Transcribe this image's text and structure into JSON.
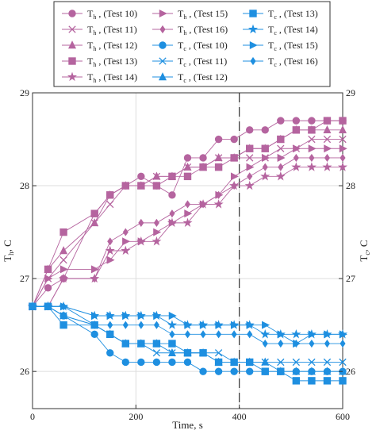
{
  "chart_data": {
    "type": "line",
    "xlabel": "Time, s",
    "ylabel_left": {
      "main": "T",
      "sub": "h",
      "unit": ", C"
    },
    "ylabel_right": {
      "main": "T",
      "sub": "c",
      "unit": ", C"
    },
    "xlim": [
      0,
      600
    ],
    "ylim": [
      25.6,
      29
    ],
    "xticks": [
      0,
      200,
      400,
      600
    ],
    "yticks": [
      26,
      27,
      28,
      29
    ],
    "grid": true,
    "vline_x": 400,
    "legend_placement": "top",
    "colors": {
      "hot": "#b5649f",
      "cold": "#1e8fe0"
    },
    "x": [
      0,
      30,
      60,
      120,
      150,
      180,
      210,
      240,
      270,
      300,
      330,
      360,
      390,
      420,
      450,
      480,
      510,
      540,
      570,
      600
    ],
    "series": [
      {
        "name": "(Test 10)",
        "main": "T",
        "sub": "h",
        "group": "hot",
        "marker": "circle",
        "values": [
          26.7,
          26.9,
          27.0,
          27.7,
          27.9,
          28.0,
          28.1,
          28.0,
          27.9,
          28.3,
          28.3,
          28.5,
          28.5,
          28.6,
          28.6,
          28.7,
          28.7,
          28.7,
          28.7,
          28.7
        ]
      },
      {
        "name": "(Test 11)",
        "main": "T",
        "sub": "h",
        "group": "hot",
        "marker": "x",
        "values": [
          26.7,
          27.0,
          27.2,
          27.6,
          27.8,
          28.0,
          28.0,
          28.1,
          28.1,
          28.2,
          28.2,
          28.3,
          28.3,
          28.3,
          28.3,
          28.4,
          28.4,
          28.5,
          28.5,
          28.5
        ]
      },
      {
        "name": "(Test 12)",
        "main": "T",
        "sub": "h",
        "group": "hot",
        "marker": "triangle",
        "values": [
          26.7,
          27.1,
          27.3,
          27.6,
          27.9,
          28.0,
          28.0,
          28.1,
          28.1,
          28.2,
          28.2,
          28.3,
          28.3,
          28.4,
          28.4,
          28.5,
          28.6,
          28.6,
          28.6,
          28.6
        ]
      },
      {
        "name": "(Test 13)",
        "main": "T",
        "sub": "h",
        "group": "hot",
        "marker": "square",
        "values": [
          26.7,
          27.1,
          27.5,
          27.7,
          27.9,
          28.0,
          28.0,
          28.0,
          28.1,
          28.1,
          28.2,
          28.2,
          28.3,
          28.4,
          28.4,
          28.5,
          28.6,
          28.6,
          28.7,
          28.7
        ]
      },
      {
        "name": "(Test 14)",
        "main": "T",
        "sub": "h",
        "group": "hot",
        "marker": "star",
        "values": [
          26.7,
          26.7,
          27.0,
          27.0,
          27.3,
          27.3,
          27.4,
          27.4,
          27.6,
          27.6,
          27.8,
          27.8,
          28.0,
          28.0,
          28.1,
          28.1,
          28.2,
          28.2,
          28.2,
          28.2
        ]
      },
      {
        "name": "(Test 15)",
        "main": "T",
        "sub": "h",
        "group": "hot",
        "marker": "triangle-right",
        "values": [
          26.7,
          27.0,
          27.1,
          27.1,
          27.2,
          27.4,
          27.4,
          27.5,
          27.6,
          27.7,
          27.8,
          27.9,
          28.1,
          28.2,
          28.3,
          28.3,
          28.4,
          28.4,
          28.4,
          28.4
        ]
      },
      {
        "name": "(Test 16)",
        "main": "T",
        "sub": "h",
        "group": "hot",
        "marker": "diamond",
        "values": [
          26.7,
          26.7,
          27.0,
          27.0,
          27.4,
          27.5,
          27.6,
          27.6,
          27.7,
          27.8,
          27.8,
          27.9,
          28.0,
          28.1,
          28.2,
          28.2,
          28.3,
          28.3,
          28.3,
          28.3
        ]
      },
      {
        "name": "(Test 10)",
        "main": "T",
        "sub": "c",
        "group": "cold",
        "marker": "circle",
        "values": [
          26.7,
          26.7,
          26.6,
          26.4,
          26.2,
          26.1,
          26.1,
          26.1,
          26.1,
          26.1,
          26.0,
          26.0,
          26.0,
          26.0,
          26.0,
          26.0,
          26.0,
          26.0,
          26.0,
          26.0
        ]
      },
      {
        "name": "(Test 11)",
        "main": "T",
        "sub": "c",
        "group": "cold",
        "marker": "x",
        "values": [
          26.7,
          26.7,
          26.6,
          26.5,
          26.4,
          26.3,
          26.3,
          26.2,
          26.2,
          26.2,
          26.2,
          26.2,
          26.1,
          26.1,
          26.1,
          26.1,
          26.1,
          26.1,
          26.1,
          26.1
        ]
      },
      {
        "name": "(Test 12)",
        "main": "T",
        "sub": "c",
        "group": "cold",
        "marker": "triangle",
        "values": [
          26.7,
          26.7,
          26.6,
          26.5,
          26.4,
          26.3,
          26.3,
          26.3,
          26.2,
          26.2,
          26.2,
          26.1,
          26.1,
          26.1,
          26.1,
          26.0,
          26.0,
          26.0,
          26.0,
          26.0
        ]
      },
      {
        "name": "(Test 13)",
        "main": "T",
        "sub": "c",
        "group": "cold",
        "marker": "square",
        "values": [
          26.7,
          26.7,
          26.5,
          26.5,
          26.4,
          26.3,
          26.3,
          26.3,
          26.3,
          26.2,
          26.2,
          26.1,
          26.1,
          26.1,
          26.0,
          26.0,
          25.9,
          25.9,
          25.9,
          25.9
        ]
      },
      {
        "name": "(Test 14)",
        "main": "T",
        "sub": "c",
        "group": "cold",
        "marker": "star",
        "values": [
          26.7,
          26.7,
          26.7,
          26.6,
          26.6,
          26.6,
          26.6,
          26.6,
          26.5,
          26.5,
          26.5,
          26.5,
          26.5,
          26.5,
          26.4,
          26.4,
          26.4,
          26.4,
          26.4,
          26.4
        ]
      },
      {
        "name": "(Test 15)",
        "main": "T",
        "sub": "c",
        "group": "cold",
        "marker": "triangle-right",
        "values": [
          26.7,
          26.7,
          26.7,
          26.6,
          26.6,
          26.6,
          26.6,
          26.6,
          26.6,
          26.5,
          26.5,
          26.5,
          26.5,
          26.5,
          26.5,
          26.4,
          26.3,
          26.4,
          26.4,
          26.4
        ]
      },
      {
        "name": "(Test 16)",
        "main": "T",
        "sub": "c",
        "group": "cold",
        "marker": "diamond",
        "values": [
          26.7,
          26.7,
          26.7,
          26.5,
          26.5,
          26.5,
          26.5,
          26.5,
          26.4,
          26.4,
          26.4,
          26.4,
          26.4,
          26.4,
          26.3,
          26.3,
          26.3,
          26.3,
          26.3,
          26.3
        ]
      }
    ]
  }
}
